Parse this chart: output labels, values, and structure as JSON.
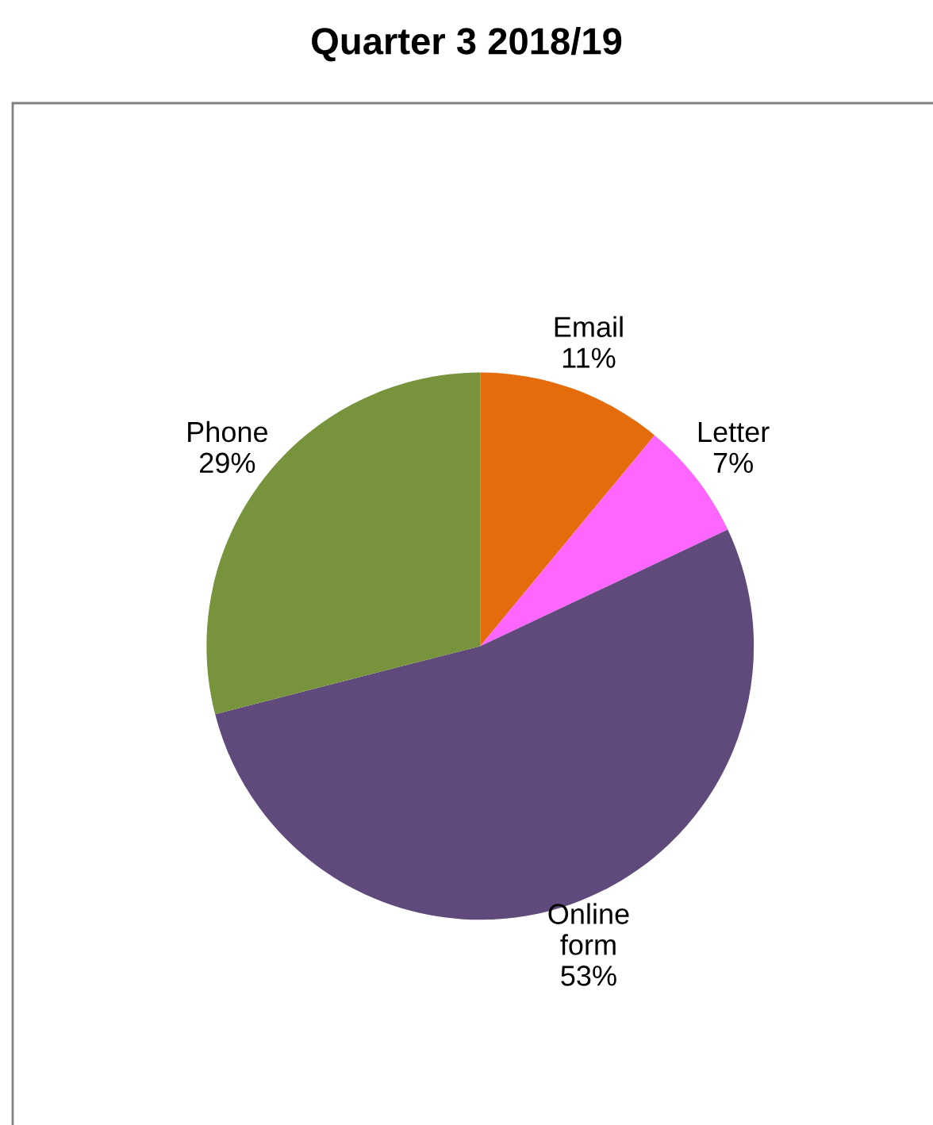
{
  "chart_data": {
    "type": "pie",
    "title": "Quarter 3 2018/19",
    "categories": [
      "Email",
      "Letter",
      "Online form",
      "Phone"
    ],
    "values": [
      11,
      7,
      53,
      29
    ],
    "value_labels": [
      "11%",
      "7%",
      "53%",
      "29%"
    ],
    "colors": [
      "#e46c0a",
      "#ff66ff",
      "#604a7b",
      "#77933c"
    ],
    "legend": false
  }
}
